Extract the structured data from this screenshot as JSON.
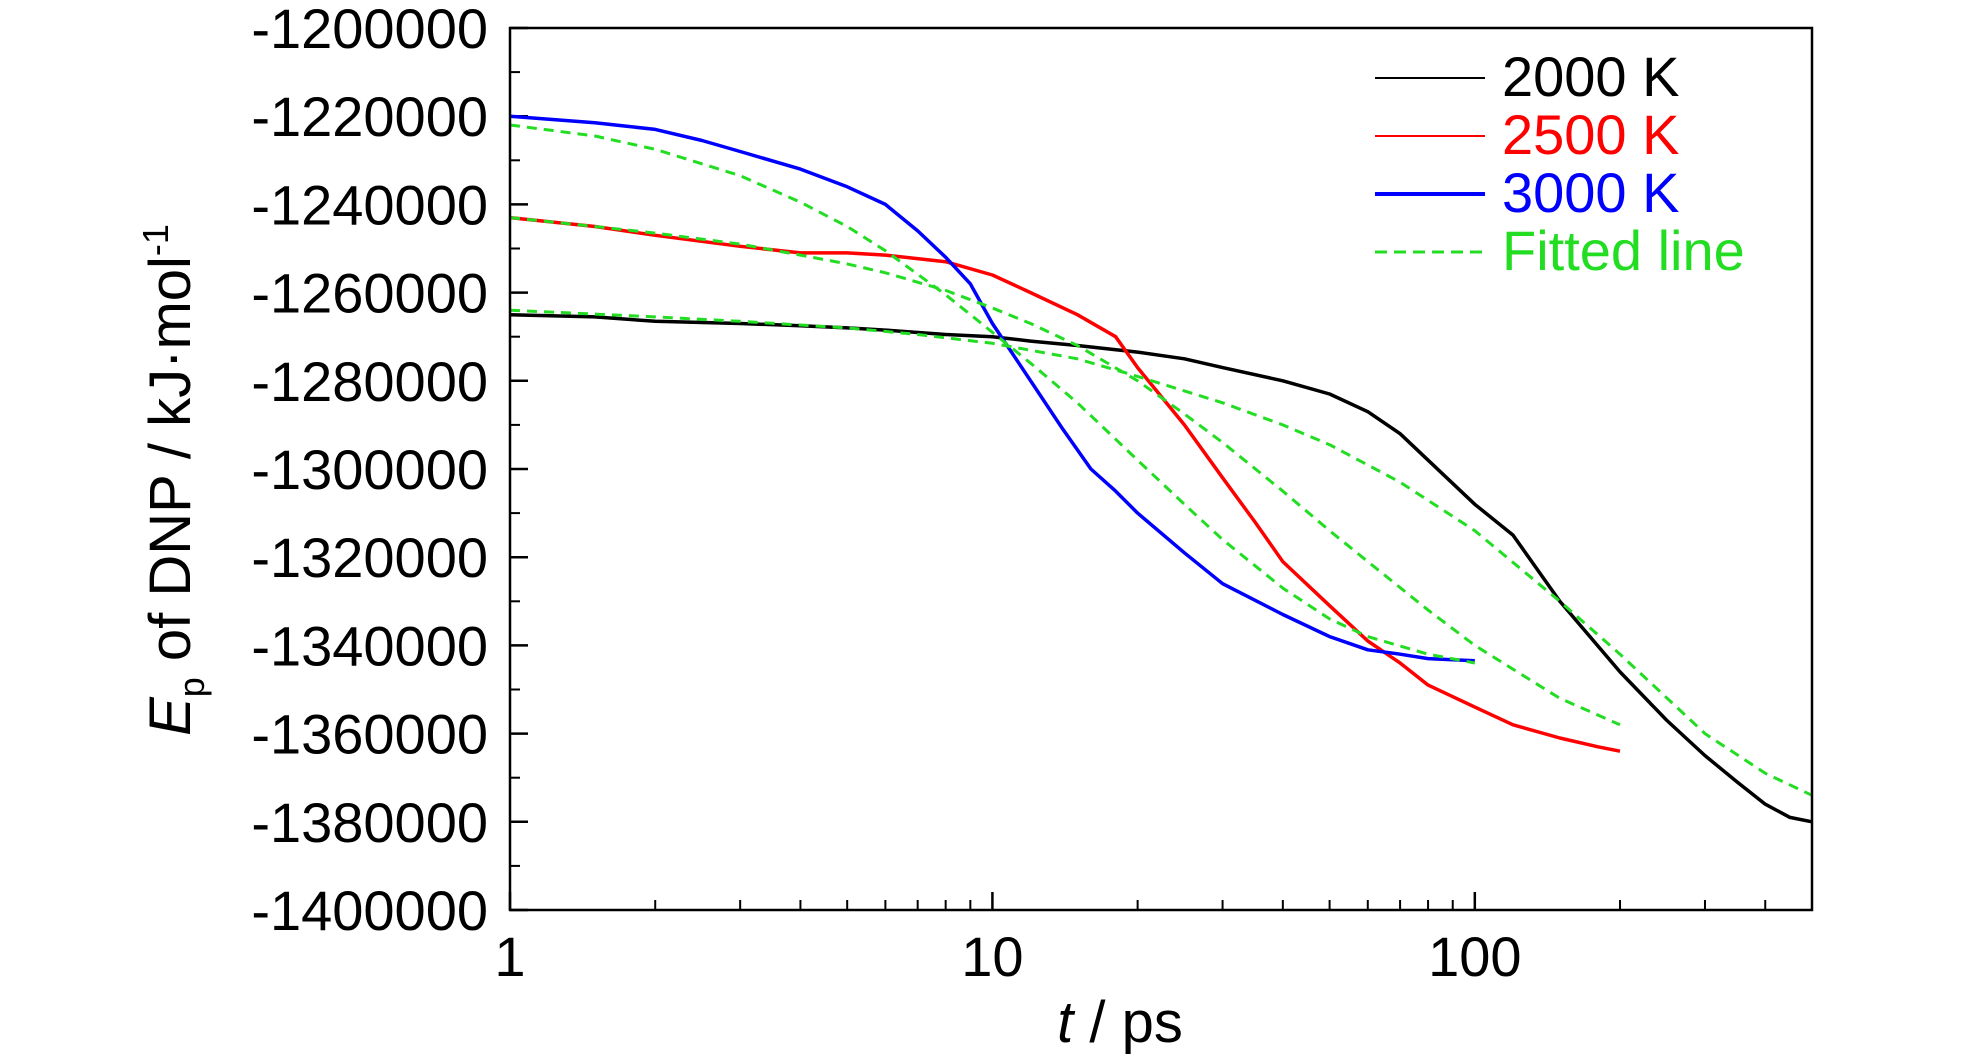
{
  "chart_data": {
    "type": "line",
    "xlabel": {
      "italic": "t",
      "rest": " / ps"
    },
    "ylabel": {
      "italic": "E",
      "sub": "p",
      "rest": " of DNP / kJ·mol",
      "sup": "-1"
    },
    "x_scale": "log",
    "xlim": [
      1,
      500
    ],
    "ylim": [
      -1400000,
      -1200000
    ],
    "x_ticks": [
      {
        "value": 1,
        "label": "1"
      },
      {
        "value": 10,
        "label": "10"
      },
      {
        "value": 100,
        "label": "100"
      }
    ],
    "y_ticks": [
      {
        "value": -1200000,
        "label": "-1200000"
      },
      {
        "value": -1220000,
        "label": "-1220000"
      },
      {
        "value": -1240000,
        "label": "-1240000"
      },
      {
        "value": -1260000,
        "label": "-1260000"
      },
      {
        "value": -1280000,
        "label": "-1280000"
      },
      {
        "value": -1300000,
        "label": "-1300000"
      },
      {
        "value": -1320000,
        "label": "-1320000"
      },
      {
        "value": -1340000,
        "label": "-1340000"
      },
      {
        "value": -1360000,
        "label": "-1360000"
      },
      {
        "value": -1380000,
        "label": "-1380000"
      },
      {
        "value": -1400000,
        "label": "-1400000"
      }
    ],
    "grid": false,
    "legend_position": "top-right",
    "series": [
      {
        "name": "2000 K",
        "color": "#000000",
        "style": "solid",
        "x": [
          1,
          1.5,
          2,
          3,
          4,
          5,
          6,
          8,
          10,
          12,
          15,
          20,
          25,
          30,
          40,
          50,
          60,
          70,
          80,
          100,
          120,
          150,
          200,
          250,
          300,
          350,
          400,
          450,
          500
        ],
        "y": [
          -1265000,
          -1265500,
          -1266500,
          -1267000,
          -1267500,
          -1268000,
          -1268500,
          -1269500,
          -1270000,
          -1271000,
          -1272000,
          -1273500,
          -1275000,
          -1277000,
          -1280000,
          -1283000,
          -1287000,
          -1292000,
          -1298000,
          -1308000,
          -1315000,
          -1330000,
          -1346000,
          -1357000,
          -1365000,
          -1371000,
          -1376000,
          -1379000,
          -1380000
        ]
      },
      {
        "name": "2500 K",
        "color": "#ff0000",
        "style": "solid",
        "x": [
          1,
          1.5,
          2,
          3,
          4,
          5,
          6,
          8,
          10,
          12,
          15,
          18,
          20,
          25,
          30,
          35,
          40,
          50,
          60,
          70,
          80,
          100,
          120,
          150,
          180,
          200
        ],
        "y": [
          -1243000,
          -1245000,
          -1247000,
          -1249500,
          -1251000,
          -1251000,
          -1251500,
          -1253000,
          -1256000,
          -1260000,
          -1265000,
          -1270000,
          -1277000,
          -1290000,
          -1302000,
          -1312000,
          -1321000,
          -1331000,
          -1339000,
          -1344000,
          -1349000,
          -1354000,
          -1358000,
          -1361000,
          -1363000,
          -1364000
        ]
      },
      {
        "name": "3000 K",
        "color": "#0000ff",
        "style": "solid",
        "x": [
          1,
          1.5,
          2,
          2.5,
          3,
          4,
          5,
          6,
          7,
          8,
          9,
          10,
          12,
          14,
          16,
          18,
          20,
          25,
          30,
          40,
          50,
          60,
          70,
          80,
          100
        ],
        "y": [
          -1220000,
          -1221500,
          -1223000,
          -1225500,
          -1228000,
          -1232000,
          -1236000,
          -1240000,
          -1246000,
          -1252000,
          -1258000,
          -1267000,
          -1280000,
          -1291000,
          -1300000,
          -1305000,
          -1310000,
          -1319000,
          -1326000,
          -1333000,
          -1338000,
          -1341000,
          -1342000,
          -1343000,
          -1343500
        ]
      },
      {
        "name": "Fitted line",
        "color": "#22dd22",
        "style": "dashed",
        "x": [
          1,
          1.5,
          2,
          3,
          4,
          5,
          6,
          8,
          10,
          12,
          15,
          20,
          25,
          30,
          40,
          50,
          60,
          80,
          100
        ],
        "y": [
          -1222000,
          -1224500,
          -1227500,
          -1233500,
          -1239500,
          -1245000,
          -1250500,
          -1260500,
          -1269000,
          -1276000,
          -1285000,
          -1298000,
          -1308000,
          -1316000,
          -1327000,
          -1334000,
          -1338000,
          -1342000,
          -1344000
        ]
      },
      {
        "name": "Fitted line",
        "color": "#22dd22",
        "style": "dashed",
        "x": [
          1,
          1.5,
          2,
          3,
          4,
          5,
          6,
          8,
          10,
          12,
          15,
          20,
          25,
          30,
          40,
          50,
          60,
          80,
          100,
          150,
          200
        ],
        "y": [
          -1243000,
          -1245000,
          -1246500,
          -1249000,
          -1251500,
          -1253500,
          -1255500,
          -1259500,
          -1263500,
          -1267000,
          -1272000,
          -1280000,
          -1287500,
          -1294000,
          -1305000,
          -1314000,
          -1321000,
          -1332000,
          -1340000,
          -1352000,
          -1358000
        ]
      },
      {
        "name": "Fitted line",
        "color": "#22dd22",
        "style": "dashed",
        "x": [
          1,
          2,
          3,
          5,
          7,
          10,
          15,
          20,
          30,
          40,
          50,
          70,
          100,
          150,
          200,
          300,
          400,
          500
        ],
        "y": [
          -1264000,
          -1265500,
          -1266500,
          -1268000,
          -1269500,
          -1271500,
          -1275000,
          -1279000,
          -1285000,
          -1290000,
          -1294500,
          -1303000,
          -1314000,
          -1330000,
          -1342000,
          -1360000,
          -1369000,
          -1374000
        ]
      }
    ]
  }
}
